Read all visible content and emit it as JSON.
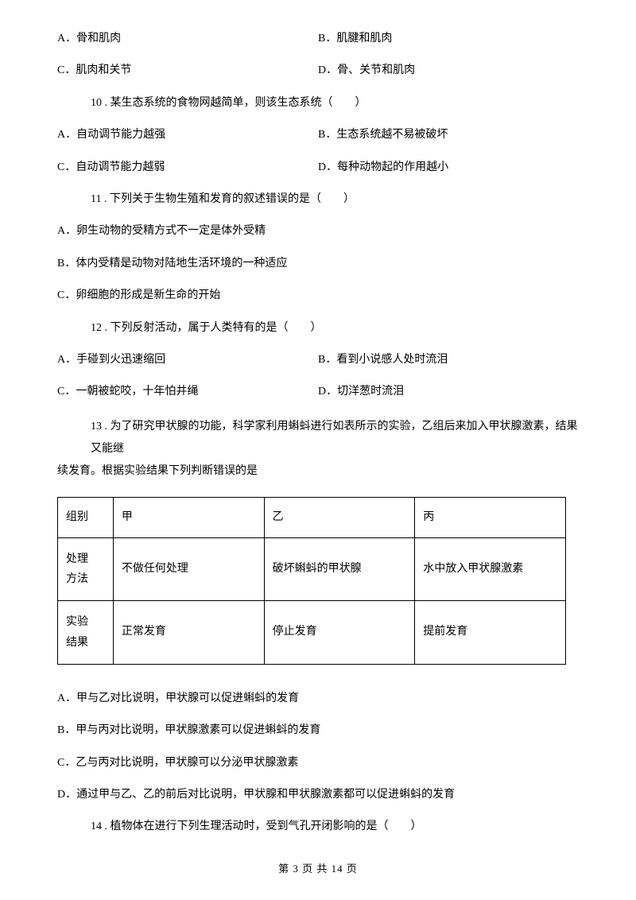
{
  "q9_options": {
    "a": "A．骨和肌肉",
    "b": "B．肌腱和肌肉",
    "c": "C．肌肉和关节",
    "d": "D．骨、关节和肌肉"
  },
  "q10": {
    "stem": "10 . 某生态系统的食物网越简单，则该生态系统（　　）",
    "a": "A．自动调节能力越强",
    "b": "B．生态系统越不易被破坏",
    "c": "C．自动调节能力越弱",
    "d": "D．每种动物起的作用越小"
  },
  "q11": {
    "stem": "11 . 下列关于生物生殖和发育的叙述错误的是（　　）",
    "a": "A．卵生动物的受精方式不一定是体外受精",
    "b": "B．体内受精是动物对陆地生活环境的一种适应",
    "c": "C．卵细胞的形成是新生命的开始"
  },
  "q12": {
    "stem": "12 . 下列反射活动，属于人类特有的是（　　）",
    "a": "A．手碰到火迅速缩回",
    "b": "B．看到小说感人处时流泪",
    "c": "C．一朝被蛇咬，十年怕井绳",
    "d": "D．切洋葱时流泪"
  },
  "q13": {
    "stem_line1": "13 . 为了研究甲状腺的功能，科学家利用蝌蚪进行如表所示的实验，乙组后来加入甲状腺激素，结果又能继",
    "stem_line2": "续发育。根据实验结果下列判断错误的是",
    "table": {
      "header": [
        "组别",
        "甲",
        "乙",
        "丙"
      ],
      "row1": [
        "处理方法",
        "不做任何处理",
        "破坏蝌蚪的甲状腺",
        "水中放入甲状腺激素"
      ],
      "row2": [
        "实验结果",
        "正常发育",
        "停止发育",
        "提前发育"
      ]
    },
    "a": "A．甲与乙对比说明，甲状腺可以促进蝌蚪的发育",
    "b": "B．甲与丙对比说明，甲状腺激素可以促进蝌蚪的发育",
    "c": "C．乙与丙对比说明，甲状腺可以分泌甲状腺激素",
    "d": "D．通过甲与乙、乙的前后对比说明，甲状腺和甲状腺激素都可以促进蝌蚪的发育"
  },
  "q14": {
    "stem": "14 . 植物体在进行下列生理活动时，受到气孔开闭影响的是（　　）"
  },
  "footer": "第 3 页 共 14 页"
}
